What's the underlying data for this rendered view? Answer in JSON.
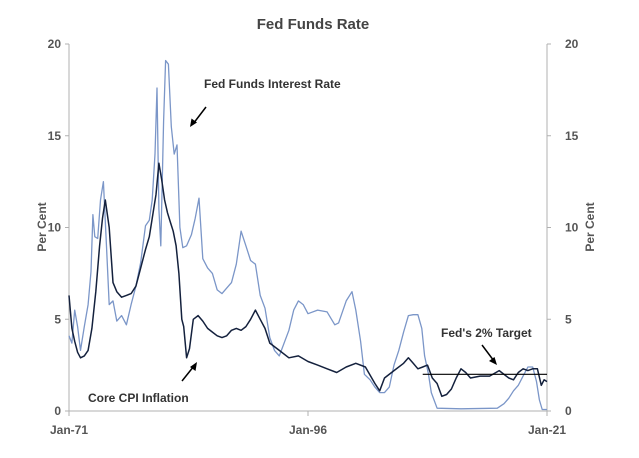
{
  "chart_data": {
    "type": "line",
    "title": "Fed Funds Rate",
    "ylabel_left": "Per Cent",
    "ylabel_right": "Per Cent",
    "ylim": [
      0,
      20
    ],
    "xlim": [
      1971,
      2021
    ],
    "y_ticks": [
      "0",
      "5",
      "10",
      "15",
      "20"
    ],
    "x_tick_labels": [
      {
        "x": 1971,
        "label": "Jan-71"
      },
      {
        "x": 1996,
        "label": "Jan-96"
      },
      {
        "x": 2021,
        "label": "Jan-21"
      }
    ],
    "grid": false,
    "colors": {
      "fed_funds": "#7b96c8",
      "core_cpi": "#14213d",
      "target": "#000000",
      "axis": "#b0b0b0"
    },
    "series": [
      {
        "name": "Fed Funds Interest Rate",
        "x": [
          1971.0,
          1971.3,
          1971.6,
          1971.9,
          1972.2,
          1972.6,
          1973.0,
          1973.3,
          1973.5,
          1973.7,
          1974.0,
          1974.3,
          1974.6,
          1974.9,
          1975.2,
          1975.6,
          1976.0,
          1976.5,
          1977.0,
          1977.5,
          1978.0,
          1978.5,
          1979.0,
          1979.4,
          1979.7,
          1980.0,
          1980.2,
          1980.4,
          1980.6,
          1980.9,
          1981.1,
          1981.4,
          1981.7,
          1982.0,
          1982.3,
          1982.6,
          1982.9,
          1983.3,
          1983.8,
          1984.2,
          1984.6,
          1985.0,
          1985.5,
          1986.0,
          1986.5,
          1987.0,
          1987.5,
          1988.0,
          1988.5,
          1989.0,
          1989.5,
          1990.0,
          1990.5,
          1991.0,
          1991.5,
          1992.0,
          1992.5,
          1993.0,
          1994.0,
          1994.5,
          1995.0,
          1995.5,
          1996.0,
          1997.0,
          1998.0,
          1998.8,
          1999.2,
          2000.0,
          2000.6,
          2001.0,
          2001.5,
          2001.9,
          2002.5,
          2003.0,
          2003.5,
          2004.0,
          2004.5,
          2005.0,
          2005.5,
          2006.0,
          2006.5,
          2007.0,
          2007.5,
          2007.9,
          2008.2,
          2008.6,
          2008.9,
          2009.5,
          2012.0,
          2015.8,
          2016.5,
          2017.0,
          2017.5,
          2018.0,
          2018.5,
          2019.0,
          2019.5,
          2019.9,
          2020.2,
          2020.5,
          2021.0
        ],
        "values": [
          4.1,
          3.7,
          5.5,
          4.6,
          3.3,
          4.6,
          5.8,
          7.6,
          10.7,
          9.5,
          9.4,
          11.5,
          12.5,
          9.2,
          5.8,
          6.0,
          4.9,
          5.2,
          4.7,
          5.8,
          6.8,
          8.1,
          10.1,
          10.4,
          11.5,
          14.0,
          17.6,
          11.0,
          9.0,
          15.8,
          19.1,
          18.9,
          15.5,
          14.0,
          14.5,
          10.0,
          8.9,
          9.0,
          9.6,
          10.5,
          11.6,
          8.3,
          7.8,
          7.5,
          6.6,
          6.4,
          6.7,
          7.0,
          8.0,
          9.8,
          9.0,
          8.2,
          8.0,
          6.3,
          5.6,
          4.0,
          3.3,
          3.0,
          4.4,
          5.5,
          6.0,
          5.8,
          5.3,
          5.5,
          5.4,
          4.7,
          4.8,
          6.0,
          6.5,
          5.5,
          3.8,
          2.0,
          1.7,
          1.3,
          1.0,
          1.0,
          1.3,
          2.5,
          3.3,
          4.3,
          5.2,
          5.25,
          5.25,
          4.5,
          3.0,
          2.0,
          1.0,
          0.15,
          0.12,
          0.15,
          0.4,
          0.7,
          1.1,
          1.4,
          1.9,
          2.4,
          2.4,
          1.6,
          0.6,
          0.08,
          0.08
        ]
      },
      {
        "name": "Core CPI Inflation",
        "x": [
          1971.0,
          1971.3,
          1971.6,
          1971.9,
          1972.2,
          1972.6,
          1973.0,
          1973.4,
          1973.8,
          1974.2,
          1974.5,
          1974.8,
          1975.2,
          1975.6,
          1976.0,
          1976.5,
          1977.0,
          1977.5,
          1978.0,
          1978.5,
          1979.0,
          1979.4,
          1979.8,
          1980.1,
          1980.4,
          1980.7,
          1981.0,
          1981.3,
          1981.6,
          1981.9,
          1982.2,
          1982.5,
          1982.8,
          1983.0,
          1983.3,
          1983.6,
          1984.0,
          1984.5,
          1985.0,
          1985.5,
          1986.0,
          1986.5,
          1987.0,
          1987.5,
          1988.0,
          1988.5,
          1989.0,
          1989.5,
          1990.0,
          1990.5,
          1991.0,
          1991.5,
          1992.0,
          1993.0,
          1994.0,
          1995.0,
          1996.0,
          1997.0,
          1998.0,
          1999.0,
          2000.0,
          2001.0,
          2002.0,
          2003.0,
          2003.5,
          2004.0,
          2005.0,
          2006.0,
          2006.5,
          2007.0,
          2007.5,
          2008.0,
          2008.5,
          2009.0,
          2009.5,
          2010.0,
          2010.5,
          2011.0,
          2011.5,
          2012.0,
          2012.5,
          2013.0,
          2014.0,
          2015.0,
          2016.0,
          2017.0,
          2017.5,
          2018.0,
          2018.5,
          2019.0,
          2019.5,
          2020.0,
          2020.4,
          2020.7,
          2021.0
        ],
        "values": [
          6.3,
          4.5,
          3.8,
          3.2,
          2.9,
          3.0,
          3.3,
          4.5,
          6.5,
          9.0,
          10.5,
          11.5,
          10.0,
          7.0,
          6.5,
          6.2,
          6.3,
          6.4,
          6.8,
          7.8,
          8.8,
          9.5,
          10.8,
          11.8,
          13.5,
          12.6,
          11.5,
          10.8,
          10.3,
          9.8,
          9.0,
          7.5,
          5.0,
          4.6,
          2.9,
          3.4,
          5.0,
          5.2,
          4.9,
          4.5,
          4.3,
          4.1,
          4.0,
          4.1,
          4.4,
          4.5,
          4.4,
          4.6,
          5.0,
          5.5,
          5.0,
          4.5,
          3.7,
          3.3,
          2.9,
          3.0,
          2.7,
          2.5,
          2.3,
          2.1,
          2.4,
          2.6,
          2.4,
          1.5,
          1.1,
          1.8,
          2.2,
          2.6,
          2.9,
          2.6,
          2.3,
          2.4,
          2.5,
          1.8,
          1.5,
          0.8,
          0.9,
          1.2,
          1.8,
          2.3,
          2.1,
          1.8,
          1.9,
          1.9,
          2.2,
          1.8,
          1.7,
          2.1,
          2.3,
          2.2,
          2.3,
          2.3,
          1.4,
          1.7,
          1.6
        ]
      }
    ],
    "reference_line": {
      "name": "Fed's 2% Target",
      "y": 2,
      "x_start": 2008.0,
      "x_end": 2021.0
    },
    "annotations": [
      {
        "text": "Fed Funds Interest Rate",
        "target_series": "Fed Funds Interest Rate"
      },
      {
        "text": "Core CPI Inflation",
        "target_series": "Core CPI Inflation"
      },
      {
        "text": "Fed's 2% Target",
        "target_series": "Fed's 2% Target"
      }
    ]
  }
}
